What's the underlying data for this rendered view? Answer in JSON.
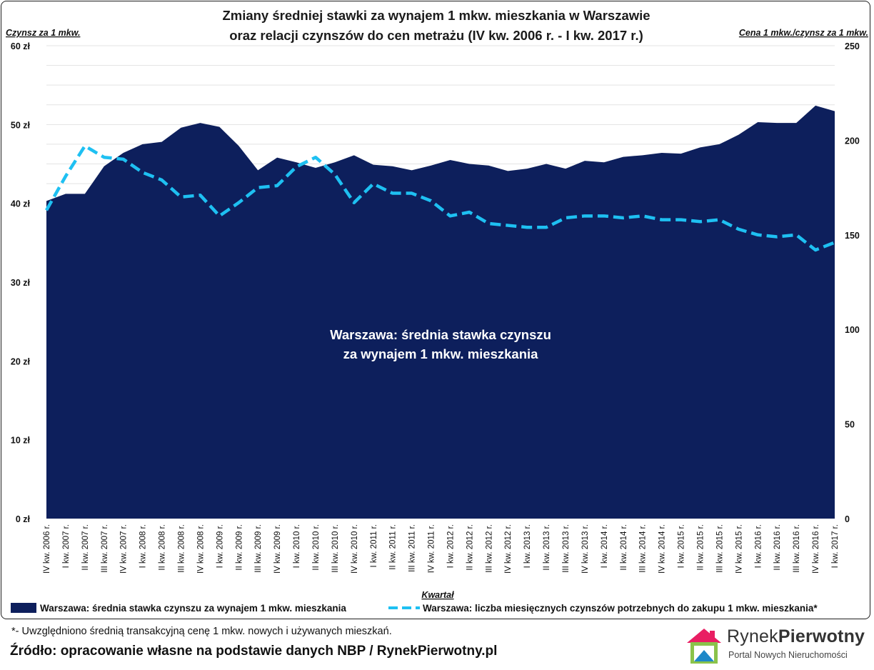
{
  "chart_data": {
    "type": "area+line",
    "title_lines": [
      "Zmiany średniej stawki za wynajem 1 mkw. mieszkania w Warszawie",
      "oraz relacji czynszów do cen metrażu (IV kw. 2006 r. - I kw. 2017 r.)"
    ],
    "ylabel_left": "Czynsz za 1 mkw.",
    "ylabel_right": "Cena 1 mkw./czynsz za 1 mkw.",
    "xlabel": "Kwartał",
    "y_left_ticks": [
      "0 zł",
      "10 zł",
      "20 zł",
      "30 zł",
      "40 zł",
      "50 zł",
      "60 zł"
    ],
    "y_left_range": [
      0,
      60
    ],
    "y_right_ticks": [
      "0",
      "50",
      "100",
      "150",
      "200",
      "250"
    ],
    "y_right_range": [
      0,
      250
    ],
    "grid": true,
    "legend_position": "bottom",
    "area_annotation": [
      "Warszawa: średnia stawka czynszu",
      "za wynajem 1 mkw. mieszkania"
    ],
    "categories": [
      "IV kw. 2006 r.",
      "I kw. 2007 r.",
      "II kw. 2007 r.",
      "III kw. 2007 r.",
      "IV kw. 2007 r.",
      "I kw. 2008 r.",
      "II kw. 2008 r.",
      "III kw. 2008 r.",
      "IV kw. 2008 r.",
      "I kw. 2009 r.",
      "II kw. 2009 r.",
      "III kw. 2009 r.",
      "IV kw. 2009 r.",
      "I kw. 2010 r.",
      "II kw. 2010 r.",
      "III kw. 2010 r.",
      "IV kw. 2010 r.",
      "I kw. 2011 r.",
      "II kw. 2011 r.",
      "III kw. 2011 r.",
      "IV kw. 2011 r.",
      "I kw. 2012 r.",
      "II kw. 2012 r.",
      "III kw. 2012 r.",
      "IV kw. 2012 r.",
      "I kw. 2013 r.",
      "II kw. 2013 r.",
      "III kw. 2013 r.",
      "IV kw. 2013 r.",
      "I kw. 2014 r.",
      "II kw. 2014 r.",
      "III kw. 2014 r.",
      "IV kw. 2014 r.",
      "I kw. 2015 r.",
      "II kw. 2015 r.",
      "III kw. 2015 r.",
      "IV kw. 2015 r.",
      "I kw. 2016 r.",
      "II kw. 2016 r.",
      "III kw. 2016 r.",
      "IV kw. 2016 r.",
      "I kw. 2017 r."
    ],
    "series": [
      {
        "name": "Warszawa: średnia stawka czynszu za wynajem 1 mkw. mieszkania",
        "type": "area",
        "axis": "left",
        "color": "#0d1f5c",
        "values": [
          40.3,
          41.2,
          41.2,
          44.7,
          46.4,
          47.5,
          47.8,
          49.6,
          50.2,
          49.7,
          47.3,
          44.2,
          45.8,
          45.2,
          44.5,
          45.2,
          46.1,
          44.9,
          44.7,
          44.2,
          44.8,
          45.5,
          45.0,
          44.8,
          44.1,
          44.4,
          45.0,
          44.4,
          45.4,
          45.2,
          45.9,
          46.1,
          46.4,
          46.3,
          47.1,
          47.5,
          48.7,
          50.3,
          50.2,
          50.2,
          52.4,
          51.7
        ]
      },
      {
        "name": "Warszawa: liczba miesięcznych czynszów potrzebnych do zakupu 1 mkw. mieszkania*",
        "type": "line-dashed",
        "axis": "right",
        "color": "#1ec0f2",
        "values": [
          163,
          181,
          197,
          191,
          190,
          183,
          179,
          170,
          171,
          160,
          167,
          175,
          176,
          186,
          191,
          182,
          167,
          177,
          172,
          172,
          168,
          160,
          162,
          156,
          155,
          154,
          154,
          159,
          160,
          160,
          159,
          160,
          158,
          158,
          157,
          158,
          153,
          150,
          149,
          150,
          142,
          146
        ]
      }
    ]
  },
  "footnote": "*- Uwzględniono średnią transakcyjną cenę 1 mkw. nowych i używanych mieszkań.",
  "source": "Źródło: opracowanie własne na podstawie danych NBP / RynekPierwotny.pl",
  "logo": {
    "name_part1": "Rynek",
    "name_part2": "Pierwotny",
    "tagline": "Portal Nowych Nieruchomości",
    "icon": "house-logo-icon",
    "colors": [
      "#8bc34a",
      "#e91e63",
      "#1e88c8",
      "#333333"
    ]
  }
}
